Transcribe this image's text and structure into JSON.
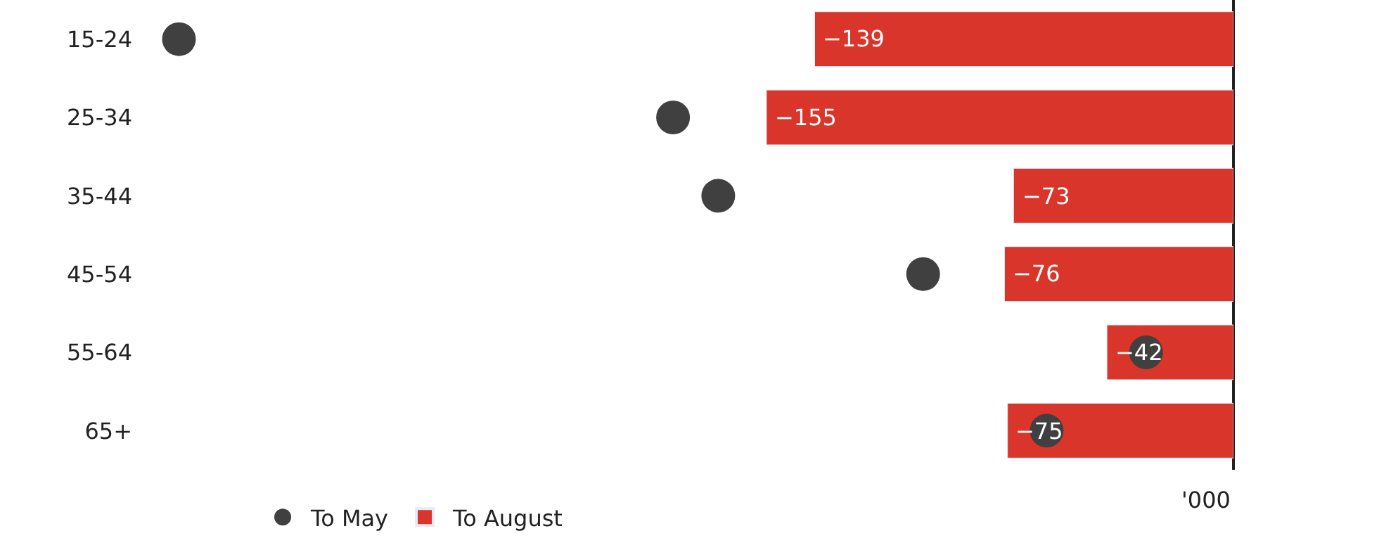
{
  "chart_data": {
    "type": "bar",
    "orientation": "horizontal",
    "categories": [
      "15-24",
      "25-34",
      "35-44",
      "45-54",
      "55-64",
      "65+"
    ],
    "series": [
      {
        "name": "To May",
        "type": "scatter",
        "color": "#404040",
        "values": [
          -350,
          -186,
          -171,
          -103,
          -29,
          -62
        ]
      },
      {
        "name": "To August",
        "color": "#d9352a",
        "values": [
          -139,
          -155,
          -73,
          -76,
          -42,
          -75
        ],
        "value_labels": [
          "−139",
          "−155",
          "−73",
          "−76",
          "−42",
          "−75"
        ]
      }
    ],
    "marker": "circle",
    "legend": "bottom",
    "annotations": [
      "'000"
    ]
  }
}
